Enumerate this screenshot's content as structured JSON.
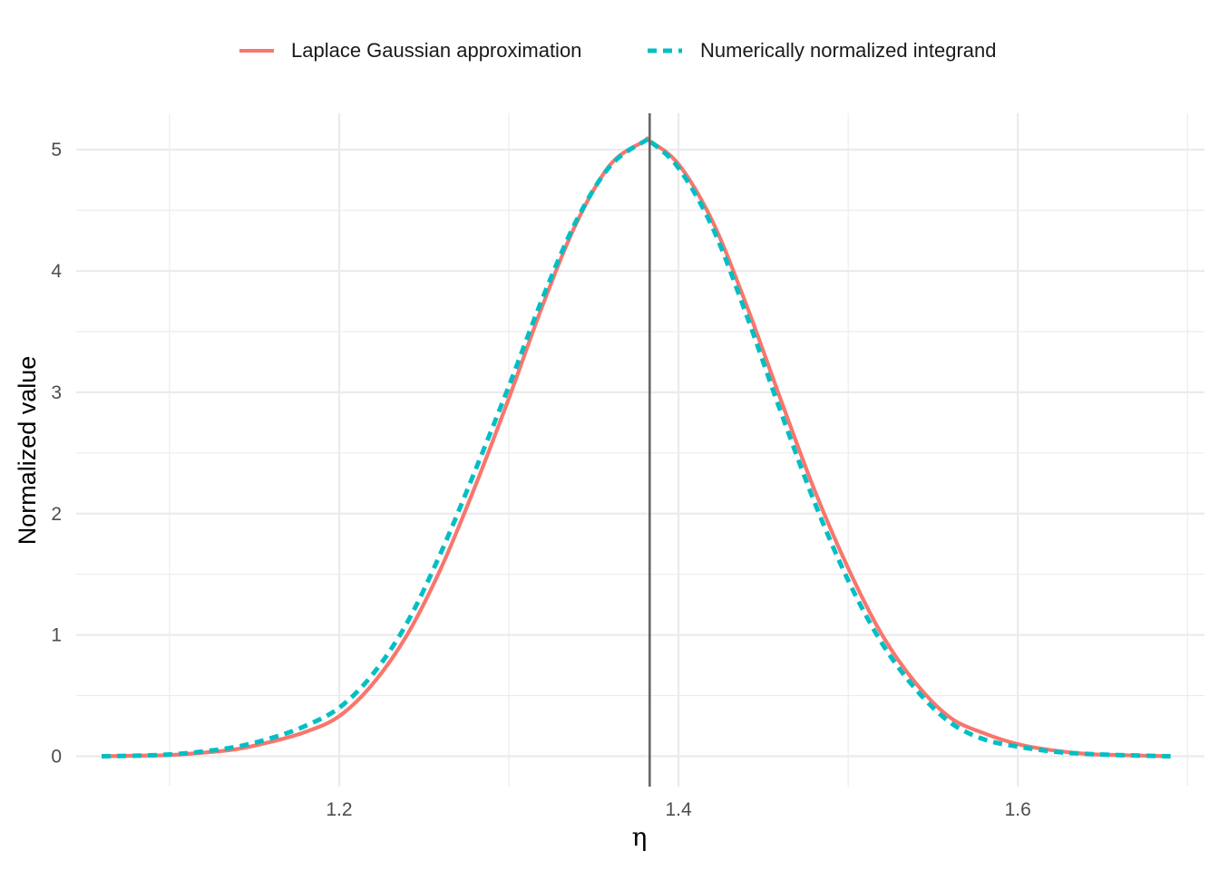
{
  "chart_data": {
    "type": "line",
    "title": "",
    "xlabel": "η",
    "ylabel": "Normalized value",
    "xlim": [
      1.045,
      1.71
    ],
    "ylim": [
      -0.25,
      5.3
    ],
    "x_ticks": [
      1.2,
      1.4,
      1.6
    ],
    "x_tick_labels": [
      "1.2",
      "1.4",
      "1.6"
    ],
    "y_ticks": [
      0,
      1,
      2,
      3,
      4,
      5
    ],
    "y_tick_labels": [
      "0",
      "1",
      "2",
      "3",
      "4",
      "5"
    ],
    "grid": true,
    "legend_position": "top",
    "vline_x": 1.383,
    "colors": {
      "laplace": "#F8766D",
      "numeric": "#00BFC4",
      "vline": "#666666",
      "grid": "#ebebeb"
    },
    "series": [
      {
        "name": "Laplace Gaussian approximation",
        "line_style": "solid",
        "x": [
          1.06,
          1.08,
          1.1,
          1.12,
          1.14,
          1.16,
          1.18,
          1.2,
          1.22,
          1.24,
          1.26,
          1.28,
          1.3,
          1.32,
          1.34,
          1.36,
          1.38,
          1.383,
          1.4,
          1.42,
          1.44,
          1.46,
          1.48,
          1.5,
          1.52,
          1.54,
          1.56,
          1.58,
          1.6,
          1.62,
          1.64,
          1.66,
          1.69
        ],
        "y": [
          0.0,
          0.005,
          0.01,
          0.03,
          0.06,
          0.12,
          0.2,
          0.33,
          0.6,
          1.0,
          1.55,
          2.22,
          2.95,
          3.72,
          4.4,
          4.88,
          5.07,
          5.07,
          4.88,
          4.41,
          3.72,
          2.95,
          2.2,
          1.55,
          1.0,
          0.6,
          0.32,
          0.19,
          0.1,
          0.05,
          0.02,
          0.01,
          0.0
        ]
      },
      {
        "name": "Numerically normalized integrand",
        "line_style": "dashed",
        "x": [
          1.06,
          1.08,
          1.1,
          1.12,
          1.14,
          1.16,
          1.18,
          1.2,
          1.22,
          1.24,
          1.26,
          1.28,
          1.3,
          1.32,
          1.34,
          1.36,
          1.38,
          1.383,
          1.4,
          1.42,
          1.44,
          1.46,
          1.48,
          1.5,
          1.52,
          1.54,
          1.56,
          1.58,
          1.6,
          1.62,
          1.64,
          1.66,
          1.69
        ],
        "y": [
          0.0,
          0.005,
          0.015,
          0.04,
          0.08,
          0.15,
          0.25,
          0.4,
          0.68,
          1.1,
          1.68,
          2.35,
          3.05,
          3.78,
          4.42,
          4.87,
          5.07,
          5.07,
          4.85,
          4.36,
          3.64,
          2.85,
          2.1,
          1.45,
          0.93,
          0.55,
          0.28,
          0.14,
          0.08,
          0.04,
          0.02,
          0.01,
          0.0
        ]
      }
    ]
  }
}
